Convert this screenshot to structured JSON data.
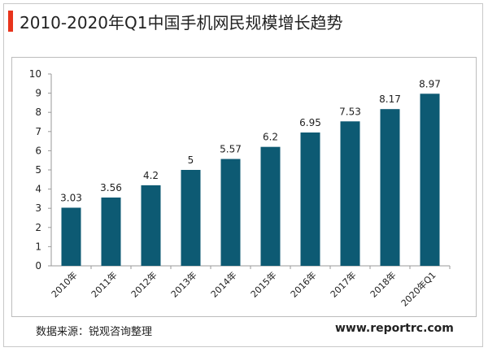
{
  "header": {
    "title": "2010-2020年Q1中国手机网民规模增长趋势"
  },
  "footer": {
    "source": "数据来源：锐观咨询整理",
    "website": "www.reportrc.com"
  },
  "colors": {
    "bar": "#0d5a73",
    "accent": "#e8341c"
  },
  "chart_data": {
    "type": "bar",
    "title": "",
    "xlabel": "",
    "ylabel": "",
    "categories": [
      "2010年",
      "2011年",
      "2012年",
      "2013年",
      "2014年",
      "2015年",
      "2016年",
      "2017年",
      "2018年",
      "2020年Q1"
    ],
    "values": [
      3.03,
      3.56,
      4.2,
      5,
      5.57,
      6.2,
      6.95,
      7.53,
      8.17,
      8.97
    ],
    "value_labels": [
      "3.03",
      "3.56",
      "4.2",
      "5",
      "5.57",
      "6.2",
      "6.95",
      "7.53",
      "8.17",
      "8.97"
    ],
    "ylim": [
      0,
      10
    ],
    "yticks": [
      0,
      1,
      2,
      3,
      4,
      5,
      6,
      7,
      8,
      9,
      10
    ],
    "grid": false,
    "legend": "none"
  }
}
